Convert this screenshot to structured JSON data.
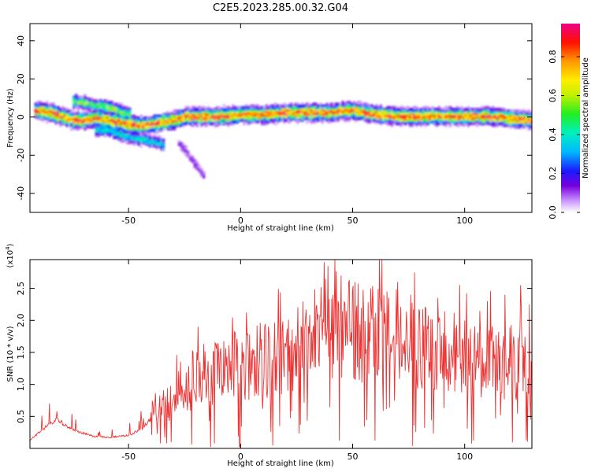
{
  "title": "C2E5.2023.285.00.32.G04",
  "colors": {
    "snr_line": "#ee3333",
    "axes": "#000000",
    "background": "#ffffff"
  },
  "chart_data": [
    {
      "type": "heatmap",
      "xlabel": "Height of straight line (km)",
      "ylabel": "Frequency (Hz)",
      "xlim": [
        -94,
        130
      ],
      "ylim": [
        -50,
        49
      ],
      "xticks": [
        -50,
        0,
        50,
        100
      ],
      "yticks": [
        -40,
        -20,
        0,
        20,
        40
      ],
      "colorbar": {
        "label": "Normalized spectral amplitude",
        "range": [
          0.0,
          0.97
        ],
        "ticks": [
          "0.0",
          "0.2",
          "0.4",
          "0.6",
          "0.8"
        ]
      },
      "ridge": {
        "description_points": [
          [
            -92,
            3
          ],
          [
            -85,
            2
          ],
          [
            -80,
            0
          ],
          [
            -75,
            -2
          ],
          [
            -70,
            -2
          ],
          [
            -65,
            -1
          ],
          [
            -60,
            -2
          ],
          [
            -55,
            -3
          ],
          [
            -50,
            -4
          ],
          [
            -45,
            -5
          ],
          [
            -40,
            -4
          ],
          [
            -35,
            -3
          ],
          [
            -30,
            -2
          ],
          [
            -25,
            0
          ],
          [
            -20,
            0
          ],
          [
            -10,
            0
          ],
          [
            0,
            1
          ],
          [
            10,
            1
          ],
          [
            20,
            2
          ],
          [
            30,
            2
          ],
          [
            40,
            2
          ],
          [
            45,
            3
          ],
          [
            50,
            3
          ],
          [
            55,
            2
          ],
          [
            60,
            1
          ],
          [
            70,
            0
          ],
          [
            80,
            0
          ],
          [
            90,
            0
          ],
          [
            100,
            0
          ],
          [
            110,
            0
          ],
          [
            120,
            -1
          ],
          [
            130,
            -2
          ]
        ],
        "secondary_branch": [
          [
            -75,
            8
          ],
          [
            -70,
            7
          ],
          [
            -65,
            6
          ],
          [
            -60,
            5
          ],
          [
            -55,
            3
          ],
          [
            -50,
            1
          ]
        ],
        "lower_branch": [
          [
            -65,
            -7
          ],
          [
            -60,
            -7
          ],
          [
            -55,
            -9
          ],
          [
            -50,
            -11
          ],
          [
            -45,
            -12
          ],
          [
            -40,
            -13
          ],
          [
            -35,
            -15
          ]
        ],
        "faint_tail": [
          [
            -28,
            -14
          ],
          [
            -25,
            -18
          ],
          [
            -22,
            -23
          ],
          [
            -19,
            -28
          ],
          [
            -17,
            -31
          ]
        ]
      }
    },
    {
      "type": "line",
      "xlabel": "Height of straight line (km)",
      "ylabel": "SNR (10 * v/v)",
      "y_multiplier": "(x10^4)",
      "xlim": [
        -94,
        130
      ],
      "ylim": [
        0,
        2.95
      ],
      "xticks": [
        -50,
        0,
        50,
        100
      ],
      "yticks": [
        0.5,
        1.0,
        1.5,
        2.0,
        2.5
      ],
      "ytick_labels": [
        "0.5",
        "1.0",
        "1.5",
        "2.0",
        "2.5"
      ],
      "series": [
        {
          "envelope": [
            [
              -94,
              0.12
            ],
            [
              -88,
              0.3
            ],
            [
              -82,
              0.45
            ],
            [
              -78,
              0.35
            ],
            [
              -72,
              0.25
            ],
            [
              -65,
              0.18
            ],
            [
              -58,
              0.17
            ],
            [
              -50,
              0.2
            ],
            [
              -44,
              0.3
            ],
            [
              -40,
              0.45
            ],
            [
              -36,
              0.55
            ],
            [
              -32,
              0.65
            ],
            [
              -28,
              0.75
            ],
            [
              -24,
              0.9
            ],
            [
              -20,
              1.0
            ],
            [
              -15,
              1.05
            ],
            [
              -10,
              1.1
            ],
            [
              -5,
              1.15
            ],
            [
              0,
              1.15
            ],
            [
              5,
              1.2
            ],
            [
              10,
              1.25
            ],
            [
              15,
              1.25
            ],
            [
              20,
              1.3
            ],
            [
              25,
              1.4
            ],
            [
              30,
              1.5
            ],
            [
              35,
              1.6
            ],
            [
              40,
              1.7
            ],
            [
              45,
              1.7
            ],
            [
              50,
              1.65
            ],
            [
              55,
              1.6
            ],
            [
              60,
              1.65
            ],
            [
              65,
              1.6
            ],
            [
              70,
              1.5
            ],
            [
              75,
              1.45
            ],
            [
              80,
              1.4
            ],
            [
              85,
              1.4
            ],
            [
              90,
              1.35
            ],
            [
              95,
              1.35
            ],
            [
              100,
              1.3
            ],
            [
              105,
              1.3
            ],
            [
              110,
              1.25
            ],
            [
              115,
              1.25
            ],
            [
              120,
              1.2
            ],
            [
              125,
              1.2
            ],
            [
              130,
              1.15
            ]
          ],
          "peaks": [
            [
              -82,
              0.58
            ],
            [
              -19,
              1.9
            ],
            [
              4,
              1.78
            ],
            [
              38,
              2.65
            ],
            [
              39,
              2.85
            ],
            [
              45,
              2.7
            ],
            [
              51,
              2.6
            ],
            [
              58,
              2.5
            ],
            [
              63,
              2.95
            ],
            [
              70,
              2.6
            ],
            [
              76,
              2.4
            ],
            [
              88,
              2.35
            ],
            [
              100,
              2.0
            ],
            [
              110,
              2.3
            ],
            [
              118,
              2.4
            ],
            [
              125,
              2.55
            ],
            [
              129,
              2.25
            ]
          ]
        }
      ]
    }
  ]
}
